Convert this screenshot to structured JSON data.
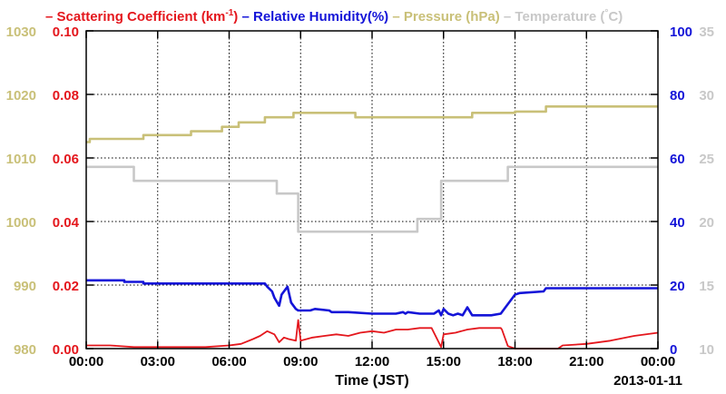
{
  "chart_data": {
    "type": "line",
    "title": "",
    "xlabel": "Time (JST)",
    "date_label": "2013-01-11",
    "x_ticks": [
      "00:00",
      "03:00",
      "06:00",
      "09:00",
      "12:00",
      "15:00",
      "18:00",
      "21:00",
      "00:00"
    ],
    "xlim": [
      "00:00",
      "24:00"
    ],
    "grid": true,
    "legend_position": "top",
    "colors": {
      "scattering": "#e4171d",
      "humidity": "#1414d8",
      "pressure": "#c9c078",
      "temperature": "#c8c8c8"
    },
    "axes": {
      "pressure": {
        "ticks": [
          "980",
          "990",
          "1000",
          "1010",
          "1020",
          "1030"
        ],
        "ylim": [
          980,
          1030
        ]
      },
      "scattering": {
        "ticks": [
          "0.00",
          "0.02",
          "0.04",
          "0.06",
          "0.08",
          "0.10"
        ],
        "ylim": [
          0,
          0.1
        ]
      },
      "humidity": {
        "ticks": [
          "0",
          "20",
          "40",
          "60",
          "80",
          "100"
        ],
        "ylim": [
          0,
          100
        ]
      },
      "temperature": {
        "ticks": [
          "10",
          "15",
          "20",
          "25",
          "30",
          "35"
        ],
        "ylim": [
          10,
          35
        ]
      }
    },
    "legend": {
      "scattering": {
        "dash": "–",
        "text": " Scattering Coefficient (km",
        "sup": "-1",
        "close": ")"
      },
      "humidity": {
        "dash": "–",
        "text": " Relative Humidity(%)"
      },
      "pressure": {
        "dash": "–",
        "text": " Pressure (hPa)"
      },
      "temperature": {
        "dash": "–",
        "text": " Temperature (",
        "deg": "°",
        "close": "C)"
      }
    },
    "series": [
      {
        "name": "Pressure (hPa)",
        "key": "pressure",
        "axis": "pressure",
        "x": [
          0,
          0.15,
          0.15,
          2.4,
          2.4,
          4.4,
          4.4,
          5.7,
          5.7,
          6.4,
          6.4,
          7.5,
          7.5,
          8.7,
          8.7,
          11.3,
          11.3,
          16.2,
          16.2,
          18.0,
          18.0,
          19.3,
          19.3,
          24
        ],
        "y": [
          1012.5,
          1012.5,
          1013.0,
          1013.0,
          1013.6,
          1013.6,
          1014.2,
          1014.2,
          1014.9,
          1014.9,
          1015.6,
          1015.6,
          1016.4,
          1016.4,
          1017.1,
          1017.1,
          1016.4,
          1016.4,
          1017.1,
          1017.1,
          1017.3,
          1017.3,
          1018.1,
          1018.1
        ]
      },
      {
        "name": "Temperature (°C)",
        "key": "temperature",
        "axis": "temperature",
        "x": [
          0,
          2.0,
          2.0,
          8.0,
          8.0,
          8.9,
          8.9,
          13.9,
          13.9,
          14.9,
          14.9,
          17.7,
          17.7,
          24
        ],
        "y": [
          24.3,
          24.3,
          23.2,
          23.2,
          22.2,
          22.2,
          19.2,
          19.2,
          20.2,
          20.2,
          23.2,
          23.2,
          24.3,
          24.3
        ]
      },
      {
        "name": "Relative Humidity(%)",
        "key": "humidity",
        "axis": "humidity",
        "x": [
          0,
          1.6,
          1.6,
          2.4,
          2.4,
          7.5,
          7.6,
          7.8,
          7.9,
          8.1,
          8.2,
          8.45,
          8.6,
          8.8,
          8.9,
          9.4,
          9.6,
          10.2,
          10.3,
          11.0,
          12.0,
          13.0,
          13.3,
          13.4,
          13.5,
          14.0,
          14.6,
          14.8,
          14.9,
          15.0,
          15.2,
          15.4,
          15.6,
          15.8,
          16.0,
          16.2,
          17.0,
          17.4,
          17.6,
          18.0,
          18.2,
          19.2,
          19.3,
          24
        ],
        "y": [
          21.5,
          21.5,
          21.0,
          21.0,
          20.5,
          20.5,
          19.5,
          18.0,
          16.0,
          13.5,
          17.0,
          19.5,
          14.5,
          12.5,
          12.0,
          12.0,
          12.5,
          12.0,
          11.5,
          11.5,
          11.0,
          11.0,
          11.5,
          11.0,
          11.5,
          11.0,
          11.0,
          12.0,
          10.5,
          12.5,
          11.0,
          10.5,
          11.0,
          10.5,
          13.0,
          10.5,
          10.5,
          11.0,
          13.0,
          17.0,
          17.5,
          18.0,
          19.0,
          19.0
        ]
      },
      {
        "name": "Scattering Coefficient (km-1)",
        "key": "scattering",
        "axis": "scattering",
        "x": [
          0,
          1.0,
          2.0,
          3.0,
          4.0,
          5.0,
          6.0,
          6.5,
          7.0,
          7.3,
          7.6,
          7.9,
          8.1,
          8.3,
          8.5,
          8.8,
          8.9,
          9.0,
          9.5,
          10.0,
          10.5,
          11.0,
          11.5,
          12.0,
          12.5,
          13.0,
          13.5,
          14.0,
          14.5,
          14.9,
          15.0,
          15.5,
          16.0,
          16.5,
          17.0,
          17.4,
          17.45,
          17.7,
          18.0,
          19.8,
          20.0,
          21.0,
          22.0,
          23.0,
          24.0
        ],
        "y": [
          0.001,
          0.001,
          0.0005,
          0.0005,
          0.0005,
          0.0005,
          0.001,
          0.0015,
          0.003,
          0.004,
          0.0055,
          0.0045,
          0.002,
          0.0035,
          0.003,
          0.0025,
          0.009,
          0.0025,
          0.0035,
          0.004,
          0.0045,
          0.004,
          0.005,
          0.0055,
          0.005,
          0.006,
          0.006,
          0.0065,
          0.0065,
          0.0005,
          0.0045,
          0.005,
          0.006,
          0.0065,
          0.0065,
          0.0065,
          0.006,
          0.0008,
          0.0,
          0.0,
          0.001,
          0.0015,
          0.0025,
          0.004,
          0.005
        ]
      }
    ]
  }
}
